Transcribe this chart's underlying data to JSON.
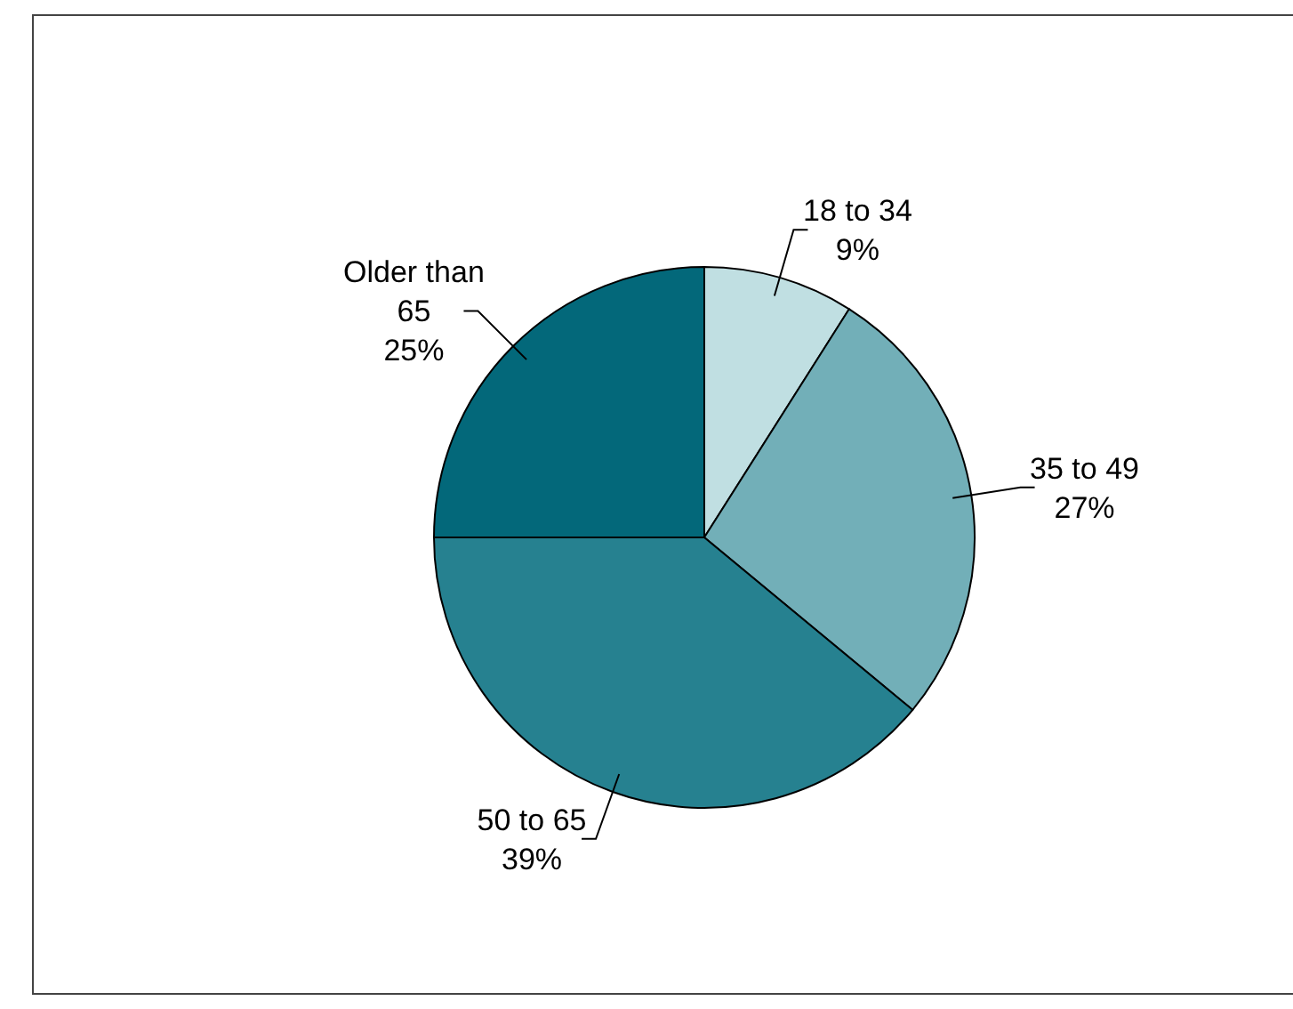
{
  "chart_data": {
    "type": "pie",
    "categories": [
      "18 to 34",
      "35 to 49",
      "50 to 65",
      "Older than 65"
    ],
    "values": [
      9,
      27,
      39,
      25
    ],
    "colors": [
      "#c0dfe2",
      "#72afb8",
      "#268190",
      "#03687a"
    ],
    "value_labels": [
      "9%",
      "27%",
      "39%",
      "25%"
    ],
    "legend": false
  }
}
